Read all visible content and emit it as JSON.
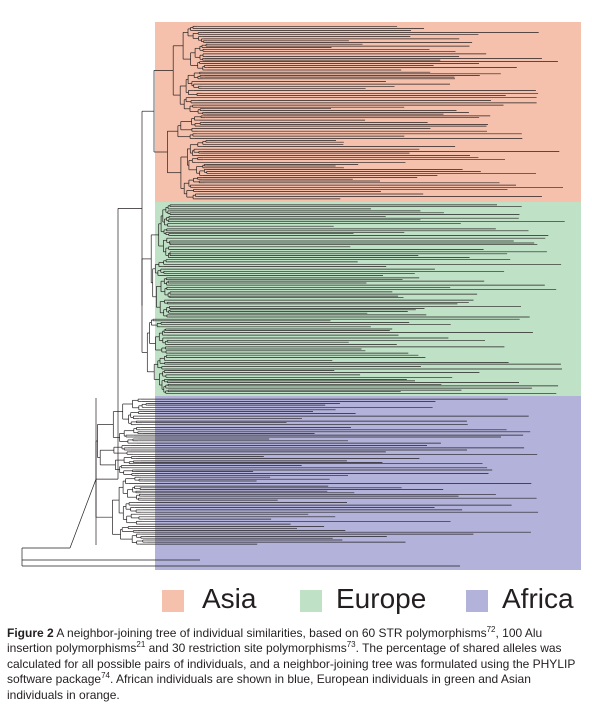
{
  "groups": [
    {
      "label": "Asia",
      "color": "#f6c1ac"
    },
    {
      "label": "Europe",
      "color": "#bfe1c6"
    },
    {
      "label": "Africa",
      "color": "#b2b2da"
    }
  ],
  "tree": {
    "line_color": "#231f20"
  },
  "caption": {
    "figure_label": "Figure 2",
    "t1": " A neighbor-joining tree of individual similarities, based on 60 STR polymorphisms",
    "r1": "72",
    "t2": ", 100 Alu insertion polymorphisms",
    "r2": "21",
    "t3": " and 30 restriction site polymorphisms",
    "r3": "73",
    "t4": ". The percentage of shared alleles was calculated for all possible pairs of individuals, and a neighbor-joining tree was formulated using the PHYLIP software package",
    "r4": "74",
    "t5": ". African individuals are shown in blue, European individuals in green and Asian individuals in orange."
  }
}
